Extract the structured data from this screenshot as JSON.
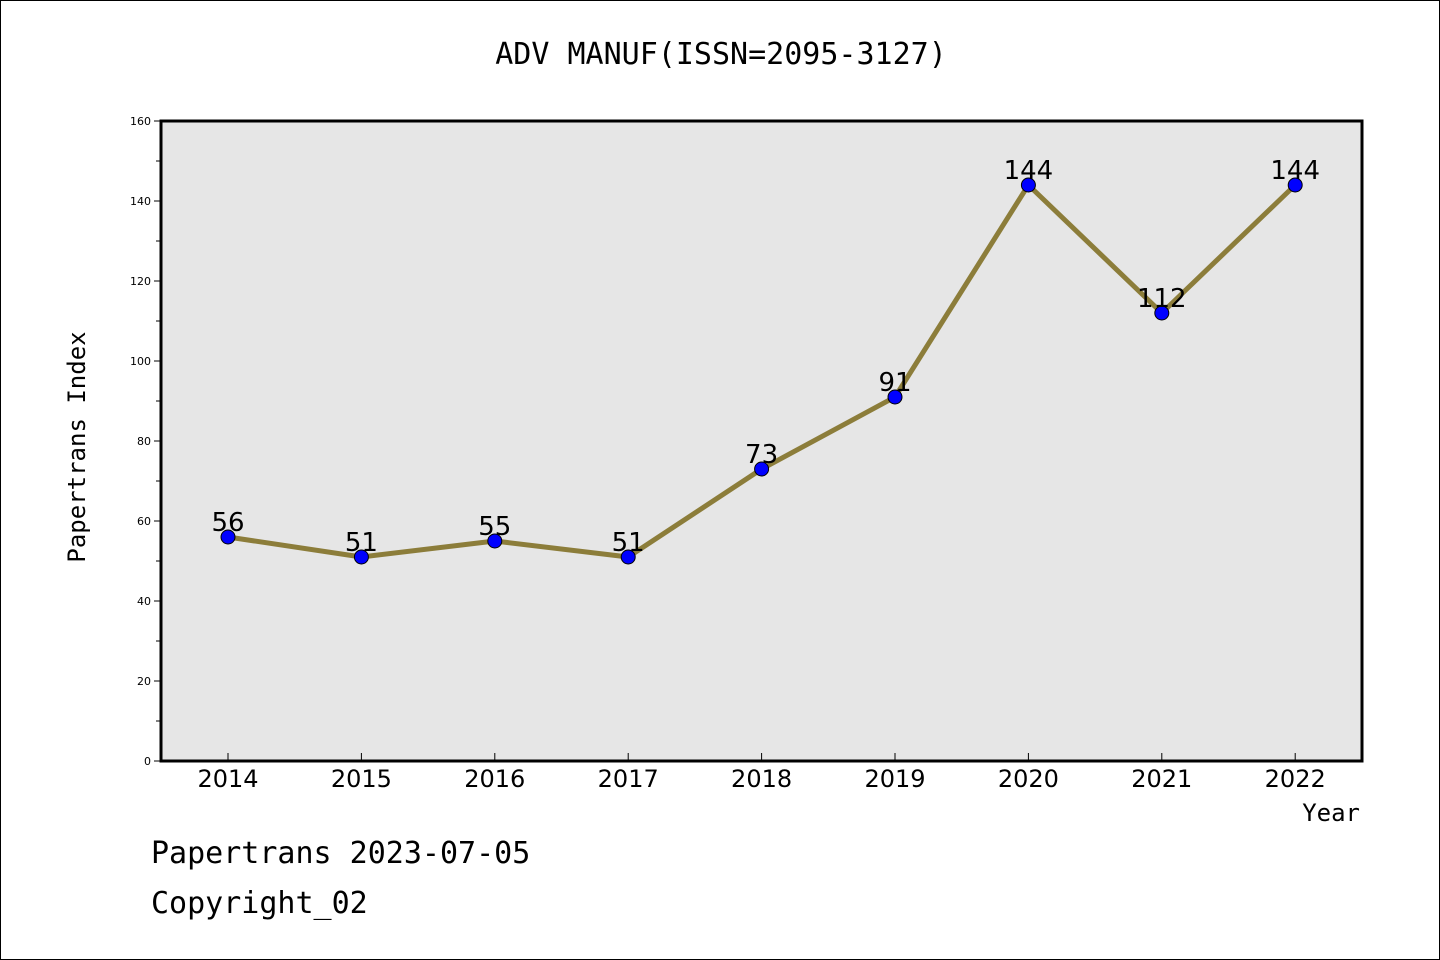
{
  "chart_data": {
    "type": "line",
    "title": "ADV MANUF(ISSN=2095-3127)",
    "xlabel": "Year",
    "ylabel": "Papertrans Index",
    "categories": [
      "2014",
      "2015",
      "2016",
      "2017",
      "2018",
      "2019",
      "2020",
      "2021",
      "2022"
    ],
    "values": [
      56,
      51,
      55,
      51,
      73,
      91,
      144,
      112,
      144
    ],
    "data_labels": [
      "56",
      "51",
      "55",
      "51",
      "73",
      "91",
      "144",
      "112",
      "144"
    ],
    "ylim": [
      0,
      160
    ],
    "yticks": [
      "0",
      "20",
      "40",
      "60",
      "80",
      "100",
      "120",
      "140",
      "160"
    ],
    "grid": false,
    "legend": "none",
    "colors": {
      "line": "#8c7d3a",
      "marker": "#0000ff",
      "plot_background": "#e6e6e6"
    }
  },
  "footer": {
    "line1": "Papertrans 2023-07-05",
    "line2": "Copyright_02"
  }
}
